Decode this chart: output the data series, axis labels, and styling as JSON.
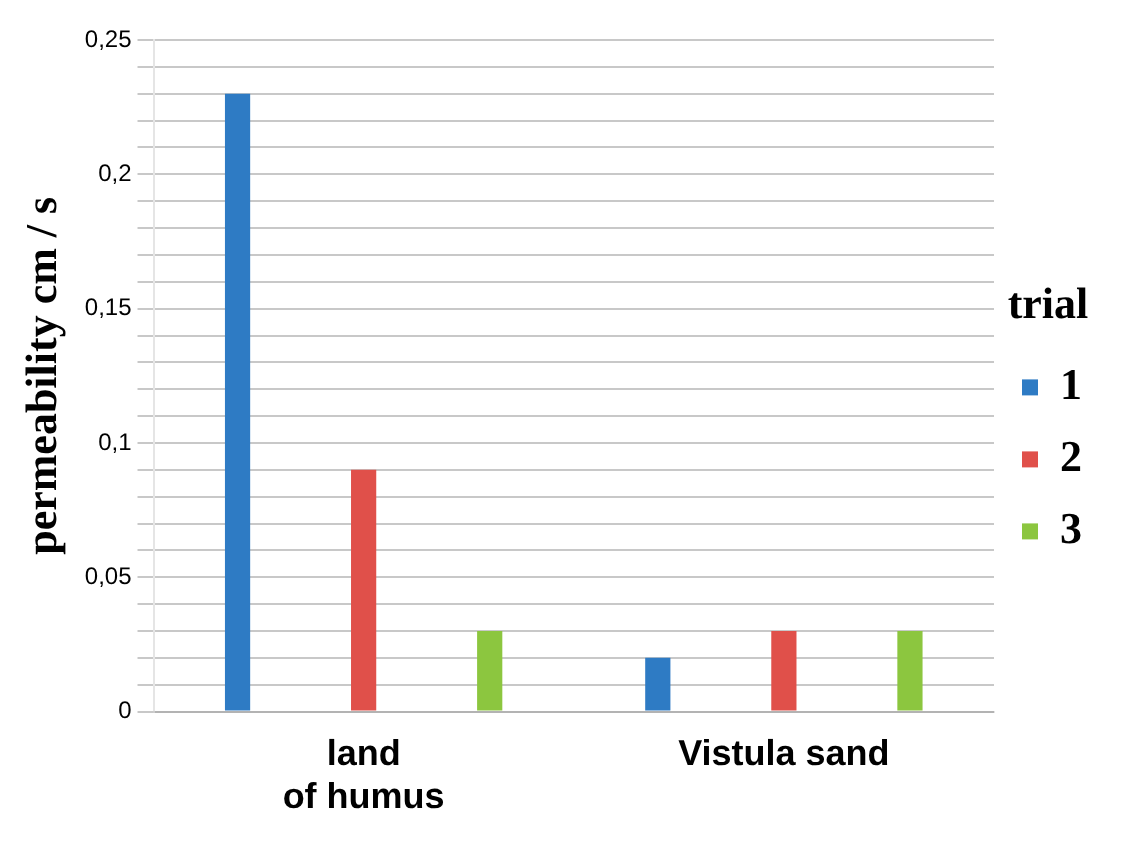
{
  "chart_data": {
    "type": "bar",
    "ylabel": "permeability cm / s",
    "legend_title": "trial",
    "legend": "right",
    "grid": "y",
    "categories": [
      "land\nof humus",
      "Vistula sand"
    ],
    "series": [
      {
        "name": "1",
        "color": "#2e7bc4",
        "values": [
          0.23,
          0.02
        ]
      },
      {
        "name": "2",
        "color": "#e0504a",
        "values": [
          0.09,
          0.03
        ]
      },
      {
        "name": "3",
        "color": "#8cc63f",
        "values": [
          0.03,
          0.03
        ]
      }
    ],
    "ylim": [
      0,
      0.25
    ],
    "yticks": [
      {
        "value": 0,
        "label": "0"
      },
      {
        "value": 0.01,
        "label": null
      },
      {
        "value": 0.02,
        "label": null
      },
      {
        "value": 0.03,
        "label": null
      },
      {
        "value": 0.04,
        "label": null
      },
      {
        "value": 0.05,
        "label": "0,05"
      },
      {
        "value": 0.06,
        "label": null
      },
      {
        "value": 0.07,
        "label": null
      },
      {
        "value": 0.08,
        "label": null
      },
      {
        "value": 0.09,
        "label": null
      },
      {
        "value": 0.1,
        "label": "0,1"
      },
      {
        "value": 0.11,
        "label": null
      },
      {
        "value": 0.12,
        "label": null
      },
      {
        "value": 0.13,
        "label": null
      },
      {
        "value": 0.14,
        "label": null
      },
      {
        "value": 0.15,
        "label": "0,15"
      },
      {
        "value": 0.16,
        "label": null
      },
      {
        "value": 0.17,
        "label": null
      },
      {
        "value": 0.18,
        "label": null
      },
      {
        "value": 0.19,
        "label": null
      },
      {
        "value": 0.2,
        "label": "0,2"
      },
      {
        "value": 0.21,
        "label": null
      },
      {
        "value": 0.22,
        "label": null
      },
      {
        "value": 0.23,
        "label": null
      },
      {
        "value": 0.24,
        "label": null
      },
      {
        "value": 0.25,
        "label": "0,25"
      }
    ]
  }
}
